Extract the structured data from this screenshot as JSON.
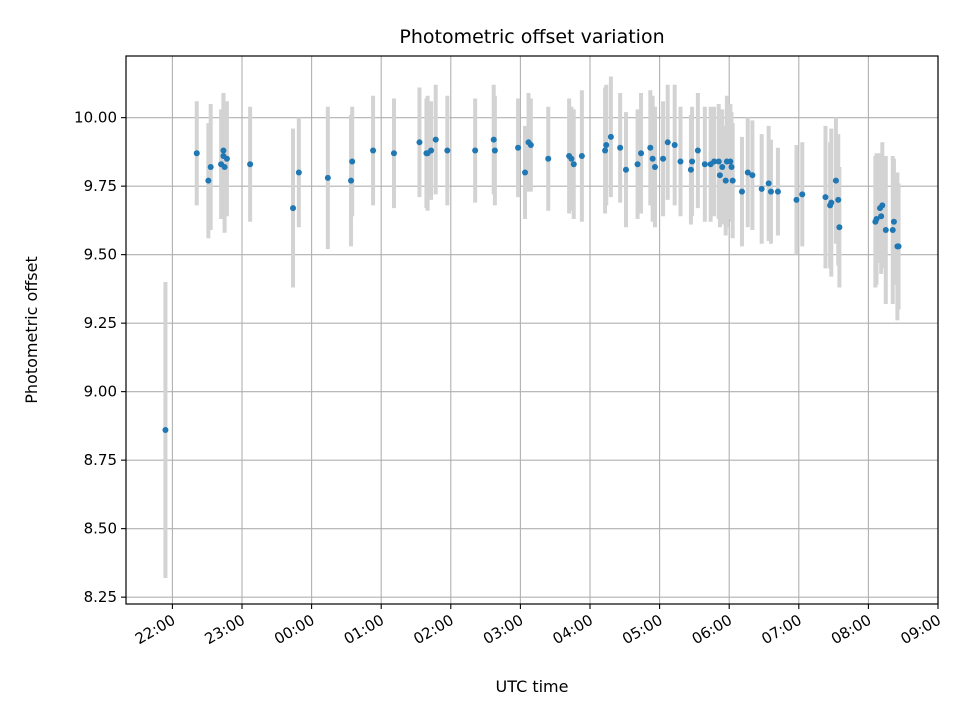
{
  "chart_data": {
    "type": "scatter",
    "title": "Photometric offset variation",
    "xlabel": "UTC time",
    "ylabel": "Photometric offset",
    "x_unit": "UTC time (HH:MM); times after midnight fall on the following day",
    "xlim": [
      "21:20",
      "09:00"
    ],
    "ylim": [
      8.225,
      10.225
    ],
    "x_ticks": [
      "22:00",
      "23:00",
      "00:00",
      "01:00",
      "02:00",
      "03:00",
      "04:00",
      "05:00",
      "06:00",
      "07:00",
      "08:00",
      "09:00"
    ],
    "y_ticks": [
      "8.25",
      "8.50",
      "8.75",
      "9.00",
      "9.25",
      "9.50",
      "9.75",
      "10.00"
    ],
    "grid": true,
    "colors": {
      "point": "#1f77b4",
      "errorbar": "#d3d3d3",
      "grid": "#b0b0b0"
    },
    "series": [
      {
        "x": [
          "21:54",
          "22:21",
          "22:31",
          "22:33",
          "22:42",
          "22:44",
          "22:44",
          "22:45",
          "22:47",
          "23:07",
          "23:44",
          "23:49",
          "00:14",
          "00:34",
          "00:35",
          "00:53",
          "01:11",
          "01:33",
          "01:39",
          "01:40",
          "01:43",
          "01:47",
          "01:57",
          "02:21",
          "02:37",
          "02:38",
          "02:58",
          "03:04",
          "03:07",
          "03:09",
          "03:24",
          "03:42",
          "03:44",
          "03:46",
          "03:53",
          "04:13",
          "04:14",
          "04:18",
          "04:26",
          "04:31",
          "04:41",
          "04:44",
          "04:52",
          "04:54",
          "04:56",
          "05:03",
          "05:07",
          "05:13",
          "05:18",
          "05:27",
          "05:28",
          "05:33",
          "05:39",
          "05:44",
          "05:47",
          "05:51",
          "05:52",
          "05:54",
          "05:57",
          "05:58",
          "06:01",
          "06:02",
          "06:03",
          "06:11",
          "06:16",
          "06:20",
          "06:28",
          "06:34",
          "06:36",
          "06:42",
          "06:58",
          "07:03",
          "07:23",
          "07:27",
          "07:28",
          "07:32",
          "07:34",
          "07:35",
          "08:06",
          "08:07",
          "08:10",
          "08:11",
          "08:12",
          "08:15",
          "08:21",
          "08:22",
          "08:25",
          "08:26"
        ],
        "y": [
          8.86,
          9.87,
          9.77,
          9.82,
          9.83,
          9.88,
          9.86,
          9.82,
          9.85,
          9.83,
          9.67,
          9.8,
          9.78,
          9.77,
          9.84,
          9.88,
          9.87,
          9.91,
          9.87,
          9.87,
          9.88,
          9.92,
          9.88,
          9.88,
          9.92,
          9.88,
          9.89,
          9.8,
          9.91,
          9.9,
          9.85,
          9.86,
          9.85,
          9.83,
          9.86,
          9.88,
          9.9,
          9.93,
          9.89,
          9.81,
          9.83,
          9.87,
          9.89,
          9.85,
          9.82,
          9.85,
          9.91,
          9.9,
          9.84,
          9.81,
          9.84,
          9.88,
          9.83,
          9.83,
          9.84,
          9.84,
          9.79,
          9.82,
          9.77,
          9.84,
          9.84,
          9.82,
          9.77,
          9.73,
          9.8,
          9.79,
          9.74,
          9.76,
          9.73,
          9.73,
          9.7,
          9.72,
          9.71,
          9.68,
          9.69,
          9.77,
          9.7,
          9.6,
          9.62,
          9.63,
          9.67,
          9.64,
          9.68,
          9.59,
          9.59,
          9.62,
          9.53,
          9.53
        ],
        "yerr": [
          0.54,
          0.19,
          0.21,
          0.23,
          0.2,
          0.21,
          0.23,
          0.24,
          0.21,
          0.21,
          0.29,
          0.2,
          0.26,
          0.24,
          0.2,
          0.2,
          0.2,
          0.2,
          0.2,
          0.21,
          0.18,
          0.2,
          0.2,
          0.19,
          0.2,
          0.2,
          0.18,
          0.17,
          0.18,
          0.17,
          0.19,
          0.21,
          0.19,
          0.2,
          0.24,
          0.23,
          0.22,
          0.22,
          0.2,
          0.21,
          0.2,
          0.22,
          0.21,
          0.23,
          0.22,
          0.21,
          0.21,
          0.22,
          0.2,
          0.2,
          0.2,
          0.21,
          0.21,
          0.21,
          0.2,
          0.21,
          0.19,
          0.21,
          0.2,
          0.24,
          0.21,
          0.2,
          0.21,
          0.2,
          0.2,
          0.2,
          0.2,
          0.21,
          0.19,
          0.16,
          0.2,
          0.19,
          0.26,
          0.23,
          0.27,
          0.23,
          0.24,
          0.22,
          0.24,
          0.24,
          0.2,
          0.21,
          0.23,
          0.27,
          0.27,
          0.23,
          0.27,
          0.23
        ]
      }
    ]
  }
}
